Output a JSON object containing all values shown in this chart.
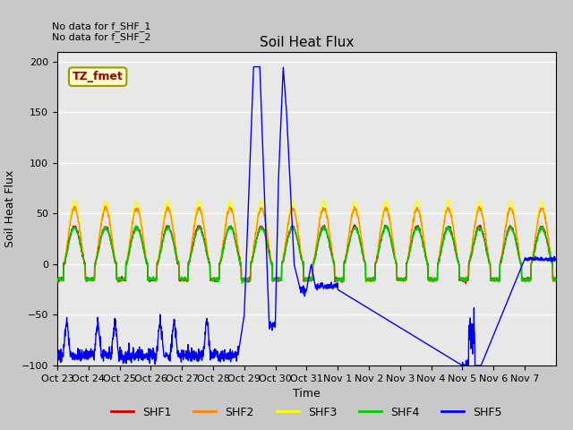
{
  "title": "Soil Heat Flux",
  "ylabel": "Soil Heat Flux",
  "xlabel": "Time",
  "annotation_text": "No data for f_SHF_1\nNo data for f_SHF_2",
  "legend_label": "TZ_fmet",
  "ylim": [
    -100,
    210
  ],
  "yticks": [
    -100,
    -50,
    0,
    50,
    100,
    150,
    200
  ],
  "series_colors": {
    "SHF1": "#cc0000",
    "SHF2": "#ff8800",
    "SHF3": "#ffff00",
    "SHF4": "#00cc00",
    "SHF5": "#0000ff"
  },
  "fig_facecolor": "#c8c8c8",
  "ax_facecolor": "#e8e8e8",
  "line_width": 1.0,
  "xtick_labels": [
    "Oct 23",
    "Oct 24",
    "Oct 25",
    "Oct 26",
    "Oct 27",
    "Oct 28",
    "Oct 29",
    "Oct 30",
    "Oct 31",
    "Nov 1",
    "Nov 2",
    "Nov 3",
    "Nov 4",
    "Nov 5",
    "Nov 6",
    "Nov 7"
  ]
}
